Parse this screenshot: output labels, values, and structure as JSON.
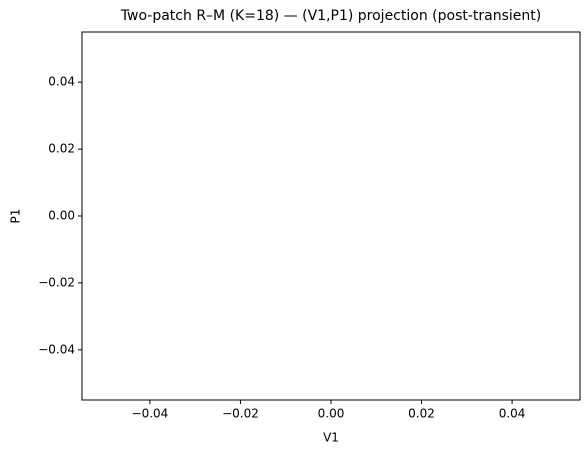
{
  "chart_data": {
    "type": "line",
    "title": "Two-patch R–M (K=18) — (V1,P1) projection (post-transient)",
    "xlabel": "V1",
    "ylabel": "P1",
    "series": [],
    "xlim": [
      -0.055,
      0.055
    ],
    "xticks": [
      {
        "value": -0.04,
        "label": "−0.04"
      },
      {
        "value": -0.02,
        "label": "−0.02"
      },
      {
        "value": 0,
        "label": "0.00"
      },
      0.02,
      0.04
    ],
    "ylim": [
      -0.055,
      0.055
    ],
    "yticks": [
      {
        "value": -0.04,
        "label": "−0.04"
      },
      {
        "value": -0.02,
        "label": "−0.02"
      },
      {
        "value": 0,
        "label": "0.00"
      },
      0.02,
      0.04
    ]
  }
}
